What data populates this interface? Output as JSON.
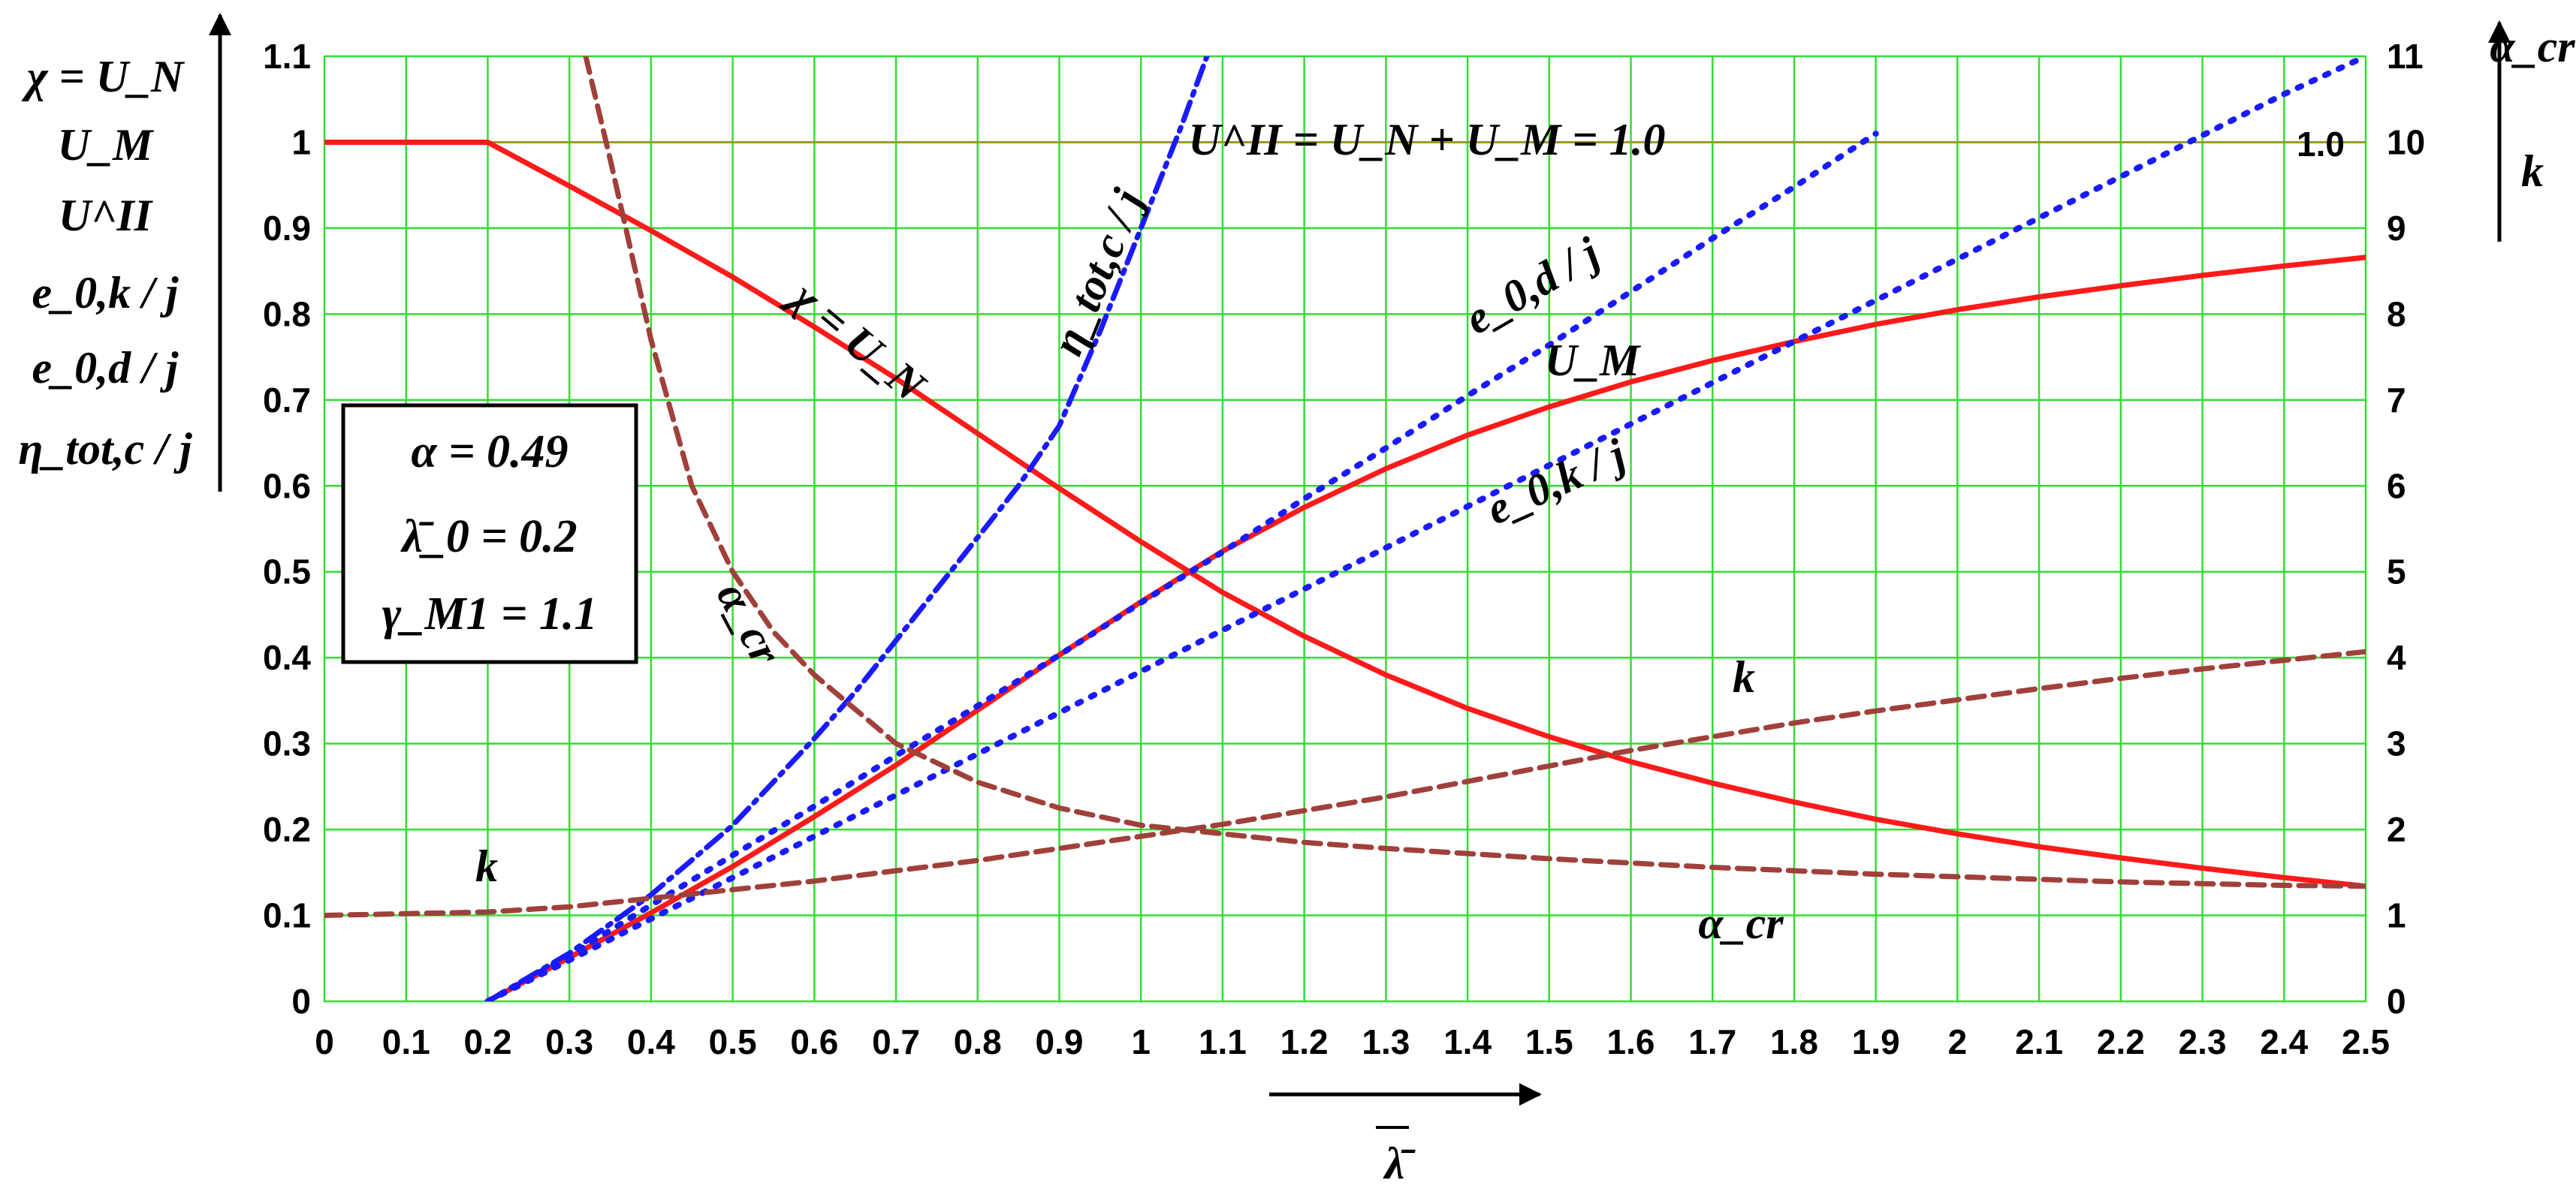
{
  "chart_data": {
    "type": "line",
    "x": [
      0,
      0.1,
      0.2,
      0.3,
      0.4,
      0.5,
      0.6,
      0.7,
      0.8,
      0.9,
      1.0,
      1.1,
      1.2,
      1.3,
      1.4,
      1.5,
      1.6,
      1.7,
      1.8,
      1.9,
      2.0,
      2.1,
      2.2,
      2.3,
      2.4,
      2.5
    ],
    "xlim": [
      0,
      2.5
    ],
    "ylim_left": [
      0,
      1.1
    ],
    "ylim_right": [
      0,
      11
    ],
    "x_ticks": [
      "0",
      "0.1",
      "0.2",
      "0.3",
      "0.4",
      "0.5",
      "0.6",
      "0.7",
      "0.8",
      "0.9",
      "1",
      "1.1",
      "1.2",
      "1.3",
      "1.4",
      "1.5",
      "1.6",
      "1.7",
      "1.8",
      "1.9",
      "2",
      "2.1",
      "2.2",
      "2.3",
      "2.4",
      "2.5"
    ],
    "y_left_ticks": [
      "0",
      "0.1",
      "0.2",
      "0.3",
      "0.4",
      "0.5",
      "0.6",
      "0.7",
      "0.8",
      "0.9",
      "1",
      "1.1"
    ],
    "y_right_ticks": [
      "0",
      "1",
      "2",
      "3",
      "4",
      "5",
      "6",
      "7",
      "8",
      "9",
      "10",
      "11"
    ],
    "grid": true,
    "grid_color": "#33dd33",
    "reference_line": {
      "y": 1.0,
      "color": "#9a9a2a"
    },
    "series": [
      {
        "key": "chi",
        "axis": "left",
        "style": "solid",
        "color": "#ff1a1a",
        "x": [
          0,
          0.2,
          0.3,
          0.4,
          0.5,
          0.6,
          0.7,
          0.8,
          0.9,
          1.0,
          1.1,
          1.2,
          1.3,
          1.4,
          1.5,
          1.6,
          1.7,
          1.8,
          1.9,
          2.0,
          2.1,
          2.2,
          2.3,
          2.4,
          2.5
        ],
        "y": [
          1.0,
          1.0,
          0.949,
          0.897,
          0.843,
          0.785,
          0.725,
          0.661,
          0.597,
          0.535,
          0.476,
          0.425,
          0.38,
          0.341,
          0.308,
          0.279,
          0.254,
          0.232,
          0.212,
          0.195,
          0.18,
          0.167,
          0.155,
          0.144,
          0.134
        ]
      },
      {
        "key": "um",
        "axis": "left",
        "style": "solid",
        "color": "#ff1a1a",
        "x": [
          0.2,
          0.3,
          0.4,
          0.5,
          0.6,
          0.7,
          0.8,
          0.9,
          1.0,
          1.1,
          1.2,
          1.3,
          1.4,
          1.5,
          1.6,
          1.7,
          1.8,
          1.9,
          2.0,
          2.1,
          2.2,
          2.3,
          2.4,
          2.5
        ],
        "y": [
          0.0,
          0.051,
          0.103,
          0.157,
          0.215,
          0.275,
          0.339,
          0.403,
          0.465,
          0.524,
          0.575,
          0.62,
          0.659,
          0.692,
          0.721,
          0.746,
          0.768,
          0.788,
          0.805,
          0.82,
          0.833,
          0.845,
          0.856,
          0.866
        ]
      },
      {
        "key": "eta",
        "axis": "left",
        "style": "dashdot",
        "color": "#1a1aff",
        "x": [
          0.2,
          0.3,
          0.4,
          0.5,
          0.6,
          0.65,
          0.7,
          0.75,
          0.8,
          0.85,
          0.9,
          0.95,
          1.0,
          1.05,
          1.1
        ],
        "y": [
          0.0,
          0.056,
          0.124,
          0.205,
          0.306,
          0.36,
          0.42,
          0.48,
          0.54,
          0.6,
          0.67,
          0.78,
          0.9,
          1.02,
          1.15
        ]
      },
      {
        "key": "e0d",
        "axis": "left",
        "style": "dotted",
        "color": "#1a1aff",
        "x": [
          0.2,
          0.3,
          0.4,
          0.5,
          0.6,
          0.7,
          0.8,
          0.9,
          1.0,
          1.1,
          1.2,
          1.3,
          1.4,
          1.5,
          1.6,
          1.7,
          1.8,
          1.9
        ],
        "y": [
          0.0,
          0.053,
          0.112,
          0.17,
          0.227,
          0.286,
          0.344,
          0.403,
          0.464,
          0.523,
          0.585,
          0.644,
          0.705,
          0.764,
          0.826,
          0.888,
          0.948,
          1.01
        ]
      },
      {
        "key": "e0k",
        "axis": "left",
        "style": "dotted",
        "color": "#1a1aff",
        "x": [
          0.2,
          0.3,
          0.4,
          0.5,
          0.6,
          0.7,
          0.8,
          0.9,
          1.0,
          1.1,
          1.2,
          1.3,
          1.4,
          1.5,
          1.6,
          1.7,
          1.8,
          1.9,
          2.0,
          2.1,
          2.2,
          2.3,
          2.4,
          2.5
        ],
        "y": [
          0.0,
          0.048,
          0.096,
          0.144,
          0.192,
          0.24,
          0.288,
          0.336,
          0.384,
          0.432,
          0.48,
          0.528,
          0.576,
          0.624,
          0.672,
          0.72,
          0.768,
          0.816,
          0.864,
          0.912,
          0.96,
          1.008,
          1.056,
          1.1
        ]
      },
      {
        "key": "acr",
        "axis": "right",
        "style": "dashed",
        "color": "#a0403a",
        "x": [
          0.32,
          0.35,
          0.4,
          0.45,
          0.5,
          0.55,
          0.6,
          0.7,
          0.8,
          0.9,
          1.0,
          1.1,
          1.2,
          1.3,
          1.4,
          1.5,
          1.6,
          1.7,
          1.8,
          1.9,
          2.0,
          2.1,
          2.2,
          2.3,
          2.4,
          2.5
        ],
        "y": [
          11.0,
          9.8,
          7.7,
          6.0,
          5.0,
          4.3,
          3.8,
          3.0,
          2.55,
          2.25,
          2.05,
          1.95,
          1.85,
          1.78,
          1.72,
          1.66,
          1.61,
          1.56,
          1.52,
          1.48,
          1.45,
          1.42,
          1.39,
          1.37,
          1.35,
          1.34
        ]
      },
      {
        "key": "k",
        "axis": "right",
        "style": "dashed",
        "color": "#a0403a",
        "x": [
          0,
          0.2,
          0.3,
          0.4,
          0.5,
          0.6,
          0.7,
          0.8,
          0.9,
          1.0,
          1.1,
          1.2,
          1.3,
          1.4,
          1.5,
          1.6,
          1.7,
          1.8,
          1.9,
          2.0,
          2.1,
          2.2,
          2.3,
          2.4,
          2.5
        ],
        "y": [
          1.0,
          1.04,
          1.1,
          1.2,
          1.3,
          1.4,
          1.52,
          1.64,
          1.78,
          1.92,
          2.06,
          2.22,
          2.38,
          2.56,
          2.74,
          2.92,
          3.08,
          3.24,
          3.38,
          3.51,
          3.64,
          3.76,
          3.87,
          3.97,
          4.07
        ]
      }
    ]
  },
  "labels": {
    "x_axis": "λ̄",
    "left_axis": [
      "χ = U_N",
      "U_M",
      "U^II",
      "e_0,k / j",
      "e_0,d / j",
      "η_tot,c / j"
    ],
    "right_axis": [
      "α_cr",
      "k"
    ],
    "u2_equation": "U^II = U_N + U_M = 1.0",
    "one_label": "1.0",
    "params": [
      "α = 0.49",
      "λ̄_0 = 0.2",
      "γ_M1 = 1.1"
    ]
  }
}
